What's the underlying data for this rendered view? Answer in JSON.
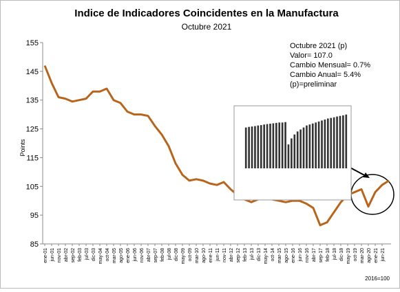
{
  "chart_data": {
    "type": "line",
    "title": "Indice de Indicadores Coincidentes en la Manufactura",
    "subtitle": "Octubre 2021",
    "y_label": "Points",
    "base_note": "2016=100",
    "annotations": [
      "Octubre 2021 (p)",
      "Valor= 107.0",
      "Cambio Mensual= 0.7%",
      "Cambio Anual= 5.4%",
      "(p)=preliminar"
    ],
    "categories": [
      "ene-01",
      "jun-01",
      "nov-01",
      "abr-02",
      "sep-02",
      "feb-03",
      "jul-03",
      "dic-03",
      "may-04",
      "oct-04",
      "mar-05",
      "ago-05",
      "ene-06",
      "jun-06",
      "nov-06",
      "abr-07",
      "sep-07",
      "feb-08",
      "jul-08",
      "dic-08",
      "may-09",
      "oct-09",
      "mar-10",
      "ago-10",
      "ene-11",
      "jun-11",
      "nov-11",
      "abr-12",
      "sep-12",
      "feb-13",
      "jul-13",
      "dic-13",
      "may-14",
      "oct-14",
      "mar-15",
      "ago-15",
      "ene-16",
      "jun-16",
      "nov-16",
      "abr-17",
      "sep-17",
      "feb-18",
      "jul-18",
      "dic-18",
      "may-19",
      "oct-19",
      "mar-20",
      "ago-20",
      "ene-21",
      "jun-21",
      null
    ],
    "series": [
      {
        "color": "#b8651b",
        "values": [
          147,
          141,
          136,
          135.5,
          134.5,
          135,
          135.5,
          138,
          138,
          139,
          135,
          134,
          131,
          130,
          130,
          129.5,
          126,
          123,
          119,
          113,
          109,
          107,
          107.5,
          107,
          106,
          105.5,
          106.5,
          104,
          102,
          100.5,
          99.5,
          100.5,
          102,
          100.5,
          100,
          99.5,
          100,
          100,
          99,
          97.5,
          91.5,
          92.5,
          96,
          99.5,
          102,
          103,
          104,
          98,
          103,
          105.5,
          107
        ]
      }
    ],
    "ylim": [
      85,
      155
    ],
    "yticks": [
      85,
      95,
      105,
      115,
      125,
      135,
      145,
      155
    ],
    "inset": {
      "type": "bar",
      "color": "#333333",
      "ylim": [
        80,
        110
      ],
      "values": [
        100.5,
        100.8,
        101,
        101.2,
        101.5,
        101.7,
        102,
        102.2,
        102.4,
        102.6,
        102.8,
        103,
        103,
        103.2,
        92,
        95,
        97,
        98.5,
        99.5,
        100.5,
        101.5,
        102,
        102.5,
        103,
        103.5,
        104,
        104.5,
        105,
        105.3,
        105.6,
        106,
        106.3,
        106.6,
        107
      ]
    }
  }
}
